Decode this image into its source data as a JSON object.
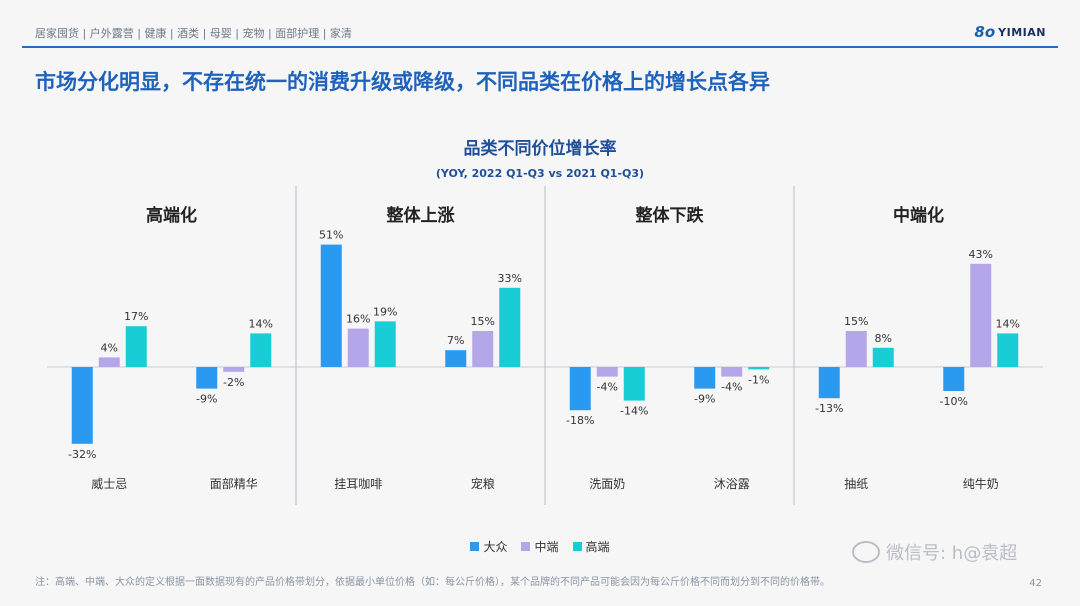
{
  "header": {
    "breadcrumb": "居家囤货 | 户外露营 | 健康 | 酒类 | 母婴 | 宠物 | 面部护理 | 家清",
    "logo_text": "YIMIAN"
  },
  "headline": "市场分化明显，不存在统一的消费升级或降级，不同品类在价格上的增长点各异",
  "chart_data": {
    "type": "bar",
    "title": "品类不同价位增长率",
    "subtitle": "(YOY, 2022 Q1-Q3 vs 2021 Q1-Q3)",
    "series_names": [
      "大众",
      "中端",
      "高端"
    ],
    "colors": [
      "#2a9af0",
      "#b4a6e8",
      "#18cdd6"
    ],
    "groups": [
      {
        "name": "高端化",
        "categories": [
          {
            "name": "威士忌",
            "values": [
              -32,
              4,
              17
            ]
          },
          {
            "name": "面部精华",
            "values": [
              -9,
              -2,
              14
            ]
          }
        ]
      },
      {
        "name": "整体上涨",
        "categories": [
          {
            "name": "挂耳咖啡",
            "values": [
              51,
              16,
              19
            ]
          },
          {
            "name": "宠粮",
            "values": [
              7,
              15,
              33
            ]
          }
        ]
      },
      {
        "name": "整体下跌",
        "categories": [
          {
            "name": "洗面奶",
            "values": [
              -18,
              -4,
              -14
            ]
          },
          {
            "name": "沐浴露",
            "values": [
              -9,
              -4,
              -1
            ]
          }
        ]
      },
      {
        "name": "中端化",
        "categories": [
          {
            "name": "抽纸",
            "values": [
              -13,
              15,
              8
            ]
          },
          {
            "name": "纯牛奶",
            "values": [
              -10,
              43,
              14
            ]
          }
        ]
      }
    ],
    "value_suffix": "%"
  },
  "legend": [
    "大众",
    "中端",
    "高端"
  ],
  "footnote": "注：高端、中端、大众的定义根据一面数据现有的产品价格带划分，依据最小单位价格（如：每公斤价格），某个品牌的不同产品可能会因为每公斤价格不同而划分到不同的价格带。",
  "page_number": "42",
  "watermark_text": "微信号: h@袁超"
}
